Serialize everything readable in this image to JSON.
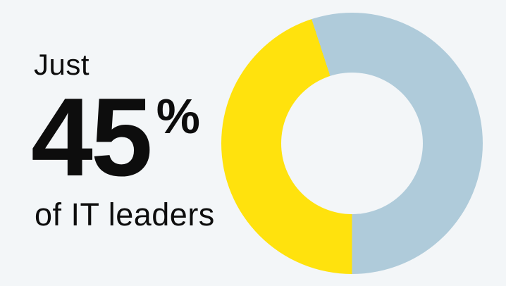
{
  "background_color": "#F3F6F8",
  "text_color": "#0D0D0D",
  "headline": {
    "prefix": "Just",
    "value": "45",
    "percent_sign": "%",
    "subject": "of IT leaders"
  },
  "chart_data": {
    "type": "pie",
    "subtype": "donut",
    "title": "",
    "segments": [
      {
        "value": 45,
        "color": "#FFE20D"
      },
      {
        "value": 55,
        "color": "#AFCBDA"
      }
    ],
    "unit": "%",
    "total": 100,
    "start_angle_deg": 180,
    "direction": "clockwise",
    "inner_radius_ratio": 0.54,
    "highlighted_value": 45,
    "legend": "none",
    "data_labels": "none",
    "caption": "Just 45% of IT leaders"
  }
}
